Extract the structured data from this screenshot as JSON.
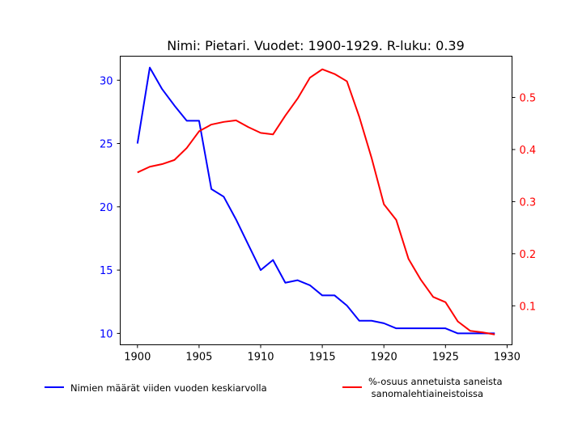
{
  "chart_data": {
    "type": "line",
    "title": "Nimi: Pietari. Vuodet: 1900-1929. R-luku: 0.39",
    "xlabel": "",
    "ylabel": "",
    "xlim": [
      1898.6,
      1930.4
    ],
    "x_ticks": [
      1900,
      1905,
      1910,
      1915,
      1920,
      1925,
      1930
    ],
    "y_left": {
      "lim": [
        9.1,
        31.9
      ],
      "ticks": [
        10,
        15,
        20,
        25,
        30
      ],
      "color": "#0000ff"
    },
    "y_right": {
      "lim": [
        0.0252,
        0.5792
      ],
      "ticks": [
        0.1,
        0.2,
        0.3,
        0.4,
        0.5
      ],
      "color": "#ff0000"
    },
    "x": [
      1900,
      1901,
      1902,
      1903,
      1904,
      1905,
      1906,
      1907,
      1908,
      1909,
      1910,
      1911,
      1912,
      1913,
      1914,
      1915,
      1916,
      1917,
      1918,
      1919,
      1920,
      1921,
      1922,
      1923,
      1924,
      1925,
      1926,
      1927,
      1928,
      1929
    ],
    "series": [
      {
        "name": "Nimien määrät viiden vuoden keskiarvolla",
        "axis": "left",
        "color": "#0000ff",
        "values": [
          25.0,
          31.0,
          29.3,
          28.0,
          26.8,
          26.8,
          21.4,
          20.8,
          19.0,
          17.0,
          15.0,
          15.8,
          14.0,
          14.2,
          13.8,
          13.0,
          13.0,
          12.2,
          11.0,
          11.0,
          10.8,
          10.4,
          10.4,
          10.4,
          10.4,
          10.4,
          10.0,
          10.0,
          10.0,
          10.0
        ]
      },
      {
        "name": "%-osuus annetuista saneista\n sanomalehtiaineistoissa",
        "axis": "right",
        "color": "#ff0000",
        "values": [
          0.356,
          0.367,
          0.372,
          0.38,
          0.403,
          0.435,
          0.448,
          0.453,
          0.456,
          0.443,
          0.432,
          0.429,
          0.465,
          0.498,
          0.538,
          0.554,
          0.545,
          0.531,
          0.463,
          0.384,
          0.295,
          0.265,
          0.19,
          0.15,
          0.117,
          0.107,
          0.07,
          0.052,
          0.049,
          0.045
        ]
      }
    ],
    "legend_placement": "below"
  }
}
